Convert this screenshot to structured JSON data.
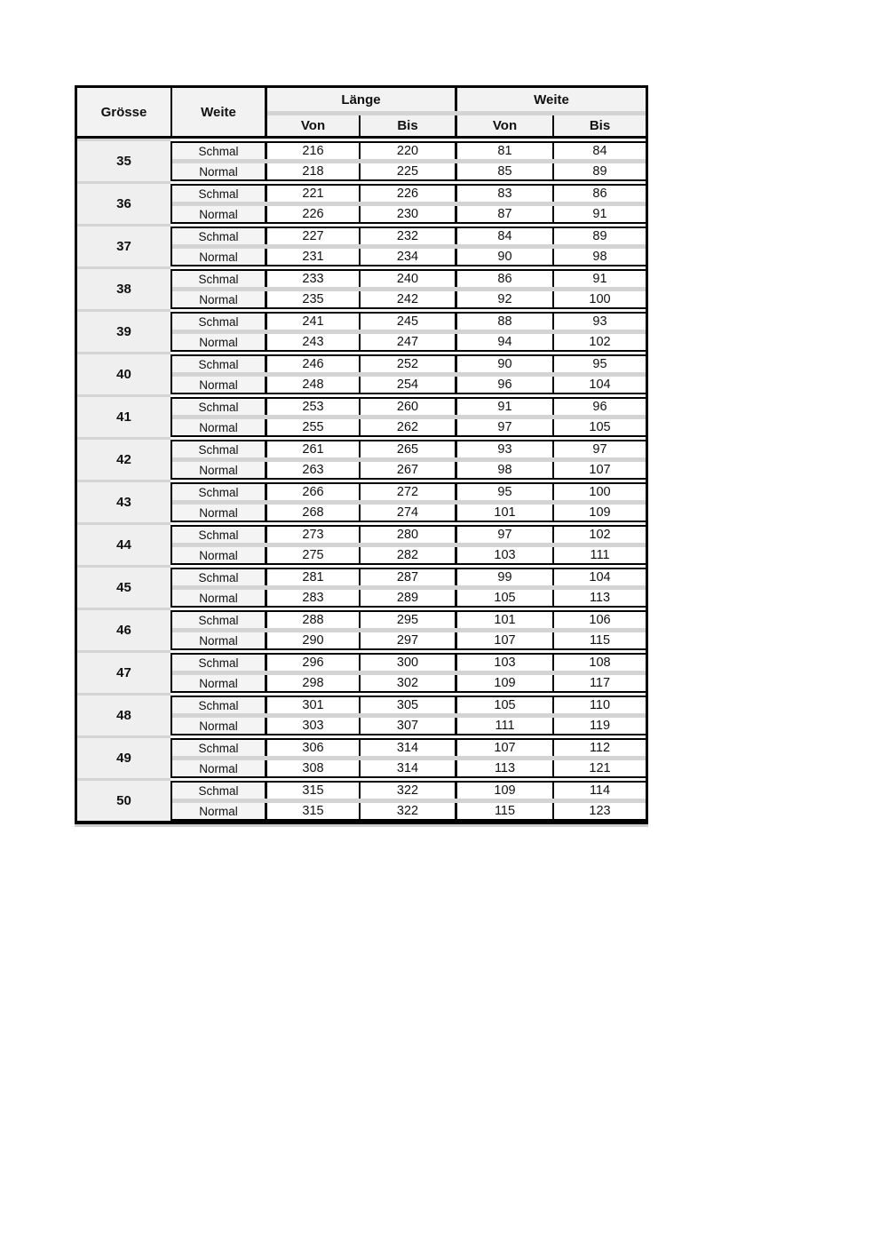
{
  "page_background": "#ffffff",
  "colors": {
    "line": "#000000",
    "band": "#d4d4d4",
    "header_bg": "#f2f2f2",
    "size_column_bg": "#efefef",
    "label_bg": "#f4f4f4",
    "number_cell_bg": "#ffffff",
    "table_shadow": "#cfcfcf"
  },
  "table": {
    "header": {
      "grosse": "Grösse",
      "weite": "Weite",
      "laenge_group": "Länge",
      "weite_group": "Weite",
      "laenge_von": "Von",
      "laenge_bis": "Bis",
      "weite_von": "Von",
      "weite_bis": "Bis"
    },
    "row_labels": {
      "schmal": "Schmal",
      "normal": "Normal"
    },
    "rows": [
      {
        "size": "35",
        "schmal": [
          "216",
          "220",
          "81",
          "84"
        ],
        "normal": [
          "218",
          "225",
          "85",
          "89"
        ]
      },
      {
        "size": "36",
        "schmal": [
          "221",
          "226",
          "83",
          "86"
        ],
        "normal": [
          "226",
          "230",
          "87",
          "91"
        ]
      },
      {
        "size": "37",
        "schmal": [
          "227",
          "232",
          "84",
          "89"
        ],
        "normal": [
          "231",
          "234",
          "90",
          "98"
        ]
      },
      {
        "size": "38",
        "schmal": [
          "233",
          "240",
          "86",
          "91"
        ],
        "normal": [
          "235",
          "242",
          "92",
          "100"
        ]
      },
      {
        "size": "39",
        "schmal": [
          "241",
          "245",
          "88",
          "93"
        ],
        "normal": [
          "243",
          "247",
          "94",
          "102"
        ]
      },
      {
        "size": "40",
        "schmal": [
          "246",
          "252",
          "90",
          "95"
        ],
        "normal": [
          "248",
          "254",
          "96",
          "104"
        ]
      },
      {
        "size": "41",
        "schmal": [
          "253",
          "260",
          "91",
          "96"
        ],
        "normal": [
          "255",
          "262",
          "97",
          "105"
        ]
      },
      {
        "size": "42",
        "schmal": [
          "261",
          "265",
          "93",
          "97"
        ],
        "normal": [
          "263",
          "267",
          "98",
          "107"
        ]
      },
      {
        "size": "43",
        "schmal": [
          "266",
          "272",
          "95",
          "100"
        ],
        "normal": [
          "268",
          "274",
          "101",
          "109"
        ]
      },
      {
        "size": "44",
        "schmal": [
          "273",
          "280",
          "97",
          "102"
        ],
        "normal": [
          "275",
          "282",
          "103",
          "111"
        ]
      },
      {
        "size": "45",
        "schmal": [
          "281",
          "287",
          "99",
          "104"
        ],
        "normal": [
          "283",
          "289",
          "105",
          "113"
        ]
      },
      {
        "size": "46",
        "schmal": [
          "288",
          "295",
          "101",
          "106"
        ],
        "normal": [
          "290",
          "297",
          "107",
          "115"
        ]
      },
      {
        "size": "47",
        "schmal": [
          "296",
          "300",
          "103",
          "108"
        ],
        "normal": [
          "298",
          "302",
          "109",
          "117"
        ]
      },
      {
        "size": "48",
        "schmal": [
          "301",
          "305",
          "105",
          "110"
        ],
        "normal": [
          "303",
          "307",
          "111",
          "119"
        ]
      },
      {
        "size": "49",
        "schmal": [
          "306",
          "314",
          "107",
          "112"
        ],
        "normal": [
          "308",
          "314",
          "113",
          "121"
        ]
      },
      {
        "size": "50",
        "schmal": [
          "315",
          "322",
          "109",
          "114"
        ],
        "normal": [
          "315",
          "322",
          "115",
          "123"
        ]
      }
    ]
  }
}
